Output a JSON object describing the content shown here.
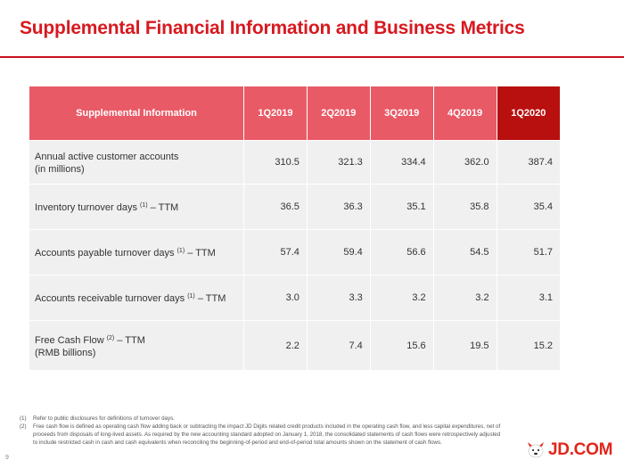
{
  "title": "Supplemental Financial Information and Business Metrics",
  "table": {
    "header": [
      "Supplemental Information",
      "1Q2019",
      "2Q2019",
      "3Q2019",
      "4Q2019",
      "1Q2020"
    ],
    "rows": [
      {
        "label": "Annual active customer accounts",
        "label_sup": "",
        "label_suffix": "",
        "label_line2": "(in millions)",
        "values": [
          "310.5",
          "321.3",
          "334.4",
          "362.0",
          "387.4"
        ]
      },
      {
        "label": "Inventory turnover days ",
        "label_sup": "(1)",
        "label_suffix": " – TTM",
        "label_line2": "",
        "values": [
          "36.5",
          "36.3",
          "35.1",
          "35.8",
          "35.4"
        ]
      },
      {
        "label": "Accounts payable turnover days ",
        "label_sup": "(1)",
        "label_suffix": " – TTM",
        "label_line2": "",
        "values": [
          "57.4",
          "59.4",
          "56.6",
          "54.5",
          "51.7"
        ]
      },
      {
        "label": "Accounts receivable turnover days ",
        "label_sup": "(1)",
        "label_suffix": " – TTM",
        "label_line2": "",
        "values": [
          "3.0",
          "3.3",
          "3.2",
          "3.2",
          "3.1"
        ]
      },
      {
        "label": "Free Cash Flow ",
        "label_sup": "(2)",
        "label_suffix": " – TTM",
        "label_line2": "(RMB billions)",
        "values": [
          "2.2",
          "7.4",
          "15.6",
          "19.5",
          "15.2"
        ]
      }
    ]
  },
  "footnotes": [
    {
      "num": "(1)",
      "text": "Refer to public disclosures for definitions of turnover days."
    },
    {
      "num": "(2)",
      "text": "Free cash flow is defined as operating cash flow adding back or subtracting the impact JD Digits related credit products included in the operating cash flow, and less capital expenditures, net of proceeds from disposals of long-lived assets. As required by the new accounting standard adopted on January 1, 2018, the consolidated statements of cash flows were retrospectively adjusted to include restricted cash in cash and cash equivalents when reconciling the beginning-of-period and end-of-period total amounts shown on the statement of cash flows."
    }
  ],
  "page_number": "9",
  "logo": {
    "text": "JD.COM",
    "icon": "jd-dog-mascot-icon",
    "color": "#e1251b"
  },
  "colors": {
    "title": "#d71920",
    "header": "#e85a66",
    "header_latest": "#b80f0f",
    "row_bg": "#f0f0f0"
  }
}
